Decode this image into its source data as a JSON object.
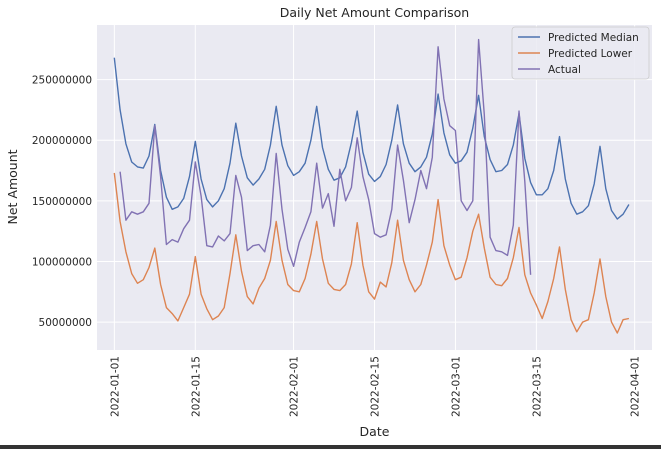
{
  "chart_data": {
    "type": "line",
    "title": "Daily Net Amount Comparison",
    "xlabel": "Date",
    "ylabel": "Net Amount",
    "x_start": "2022-01-01",
    "x_ticks": [
      "2022-01-01",
      "2022-01-15",
      "2022-02-01",
      "2022-02-15",
      "2022-03-01",
      "2022-03-15",
      "2022-04-01"
    ],
    "xlim": [
      "2021-12-29",
      "2022-04-04"
    ],
    "y_ticks": [
      50000000,
      100000000,
      150000000,
      200000000,
      250000000
    ],
    "y_tick_labels": [
      "50000000",
      "100000000",
      "150000000",
      "200000000",
      "250000000"
    ],
    "ylim": [
      27000000,
      295000000
    ],
    "grid": true,
    "legend_position": "upper-right",
    "background": "#eaeaf2",
    "series": [
      {
        "name": "Predicted Median",
        "color": "#4c72b0",
        "start_date": "2022-01-01",
        "values": [
          268000000,
          225000000,
          197000000,
          182000000,
          178000000,
          177000000,
          187000000,
          213000000,
          175000000,
          153000000,
          143000000,
          145000000,
          152000000,
          170000000,
          199000000,
          168000000,
          151000000,
          145000000,
          150000000,
          160000000,
          181000000,
          214000000,
          187000000,
          169000000,
          163000000,
          168000000,
          176000000,
          196000000,
          228000000,
          196000000,
          179000000,
          171000000,
          174000000,
          181000000,
          200000000,
          228000000,
          194000000,
          176000000,
          167000000,
          169000000,
          178000000,
          198000000,
          224000000,
          190000000,
          172000000,
          166000000,
          170000000,
          180000000,
          200000000,
          229000000,
          197000000,
          181000000,
          174000000,
          178000000,
          186000000,
          205000000,
          238000000,
          206000000,
          188000000,
          181000000,
          183000000,
          190000000,
          210000000,
          237000000,
          203000000,
          184000000,
          174000000,
          175000000,
          180000000,
          196000000,
          222000000,
          185000000,
          165000000,
          155000000,
          155000000,
          160000000,
          175000000,
          203000000,
          168000000,
          148000000,
          139000000,
          141000000,
          146000000,
          164000000,
          195000000,
          160000000,
          142000000,
          135000000,
          139000000,
          147000000
        ]
      },
      {
        "name": "Predicted Lower",
        "color": "#dd8452",
        "start_date": "2022-01-01",
        "values": [
          173000000,
          133000000,
          108000000,
          90000000,
          82000000,
          85000000,
          95000000,
          111000000,
          81000000,
          62000000,
          57000000,
          51000000,
          62000000,
          73000000,
          104000000,
          73000000,
          61000000,
          52000000,
          55000000,
          62000000,
          90000000,
          122000000,
          92000000,
          71000000,
          65000000,
          78000000,
          86000000,
          101000000,
          133000000,
          101000000,
          81000000,
          76000000,
          75000000,
          86000000,
          106000000,
          133000000,
          102000000,
          82000000,
          77000000,
          76000000,
          81000000,
          98000000,
          132000000,
          97000000,
          75000000,
          69000000,
          83000000,
          79000000,
          99000000,
          134000000,
          101000000,
          85000000,
          75000000,
          81000000,
          97000000,
          116000000,
          151000000,
          113000000,
          97000000,
          85000000,
          87000000,
          103000000,
          125000000,
          139000000,
          111000000,
          87000000,
          81000000,
          80000000,
          86000000,
          103000000,
          128000000,
          89000000,
          74000000,
          64000000,
          53000000,
          67000000,
          86000000,
          112000000,
          77000000,
          52000000,
          42000000,
          50000000,
          52000000,
          74000000,
          102000000,
          71000000,
          50000000,
          41000000,
          52000000,
          53000000
        ]
      },
      {
        "name": "Actual",
        "color": "#8172b3",
        "start_date": "2022-01-01",
        "values": [
          null,
          174000000,
          134000000,
          141000000,
          139000000,
          141000000,
          148000000,
          212000000,
          170000000,
          114000000,
          118000000,
          116000000,
          127000000,
          134000000,
          182000000,
          154000000,
          113000000,
          112000000,
          121000000,
          117000000,
          123000000,
          171000000,
          153000000,
          109000000,
          113000000,
          114000000,
          108000000,
          130000000,
          189000000,
          143000000,
          110000000,
          96000000,
          116000000,
          128000000,
          141000000,
          181000000,
          144000000,
          156000000,
          129000000,
          176000000,
          150000000,
          161000000,
          202000000,
          170000000,
          151000000,
          123000000,
          120000000,
          122000000,
          143000000,
          196000000,
          167000000,
          132000000,
          151000000,
          175000000,
          160000000,
          186000000,
          277000000,
          234000000,
          212000000,
          208000000,
          150000000,
          142000000,
          150000000,
          283000000,
          221000000,
          120000000,
          109000000,
          108000000,
          105000000,
          130000000,
          224000000,
          166000000,
          89000000
        ]
      }
    ]
  }
}
